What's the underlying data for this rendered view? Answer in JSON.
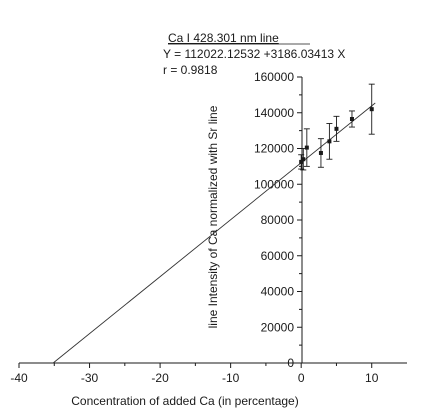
{
  "chart_data": {
    "type": "scatter",
    "title": "Ca I 428.301 nm line",
    "equation": "Y = 112022.12532 +3186.03413 X",
    "r_text": "r = 0.9818",
    "xlabel": "Concentration of added Ca (in percentage)",
    "ylabel": "line Intensity of Ca normalized with Sr line",
    "xlim": [
      -40,
      15
    ],
    "ylim": [
      0,
      160000
    ],
    "x_ticks": [
      -40,
      -30,
      -20,
      -10,
      0,
      10
    ],
    "y_ticks": [
      0,
      20000,
      40000,
      60000,
      80000,
      100000,
      120000,
      140000,
      160000
    ],
    "grid": false,
    "points": [
      {
        "x": 0.0,
        "y": 112500,
        "err": 4000
      },
      {
        "x": 0.3,
        "y": 114000,
        "err": 6000
      },
      {
        "x": 0.8,
        "y": 120500,
        "err": 10500
      },
      {
        "x": 2.8,
        "y": 117500,
        "err": 8000
      },
      {
        "x": 4.0,
        "y": 124000,
        "err": 10000
      },
      {
        "x": 5.0,
        "y": 131000,
        "err": 7000
      },
      {
        "x": 7.2,
        "y": 136500,
        "err": 4500
      },
      {
        "x": 10.0,
        "y": 142000,
        "err": 14000
      }
    ],
    "fit": {
      "intercept": 112022.12532,
      "slope": 3186.03413,
      "x_range": [
        -35.16,
        10.5
      ]
    }
  }
}
